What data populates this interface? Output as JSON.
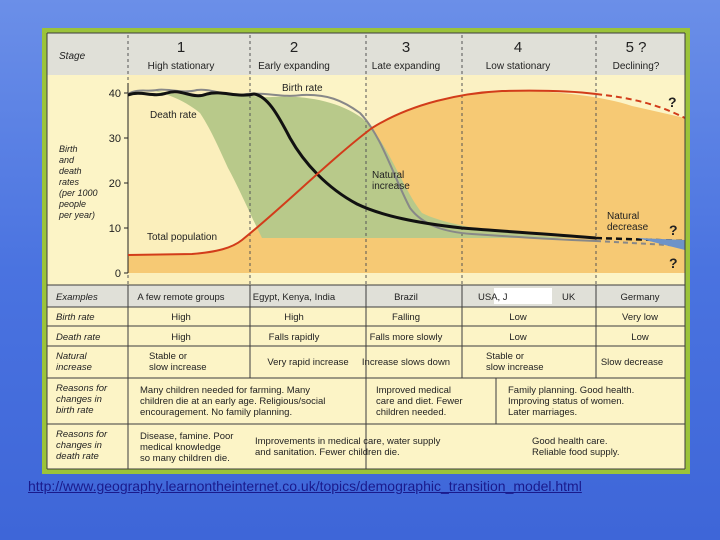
{
  "caption": {
    "line1": "http://www.geography.learnontheinternet.co.uk/topics/demographic_transition_model.html",
    "line2": ""
  },
  "stage_header": {
    "label": "Stage",
    "stages": [
      {
        "num": "1",
        "name": "High stationary"
      },
      {
        "num": "2",
        "name": "Early expanding"
      },
      {
        "num": "3",
        "name": "Late expanding"
      },
      {
        "num": "4",
        "name": "Low stationary"
      },
      {
        "num": "5 ?",
        "name": "Declining?"
      }
    ]
  },
  "axis": {
    "label_lines": [
      "Birth",
      "and",
      "death",
      "rates",
      "(per 1000",
      "people",
      "per year)"
    ],
    "ticks": [
      "40",
      "30",
      "20",
      "10",
      "0"
    ]
  },
  "graph_labels": {
    "birth_rate": "Birth rate",
    "death_rate": "Death rate",
    "natural_increase": [
      "Natural",
      "increase"
    ],
    "total_population": "Total population",
    "natural_decrease": [
      "Natural",
      "decrease"
    ],
    "q_top": "?",
    "q_mid": "?",
    "q_bottom": "?"
  },
  "table": {
    "rows": [
      {
        "label": [
          "Examples"
        ],
        "cells": [
          [
            "A few remote groups"
          ],
          [
            "Egypt, Kenya, India"
          ],
          [
            "Brazil"
          ],
          [
            "USA, J",
            "UK"
          ],
          [
            "Germany"
          ]
        ]
      },
      {
        "label": [
          "Birth rate"
        ],
        "cells": [
          [
            "High"
          ],
          [
            "High"
          ],
          [
            "Falling"
          ],
          [
            "Low"
          ],
          [
            "Very low"
          ]
        ]
      },
      {
        "label": [
          "Death rate"
        ],
        "cells": [
          [
            "High"
          ],
          [
            "Falls rapidly"
          ],
          [
            "Falls more slowly"
          ],
          [
            "Low"
          ],
          [
            "Low"
          ]
        ]
      },
      {
        "label": [
          "Natural",
          "increase"
        ],
        "cells": [
          [
            "Stable or",
            "slow increase"
          ],
          [
            "Very rapid increase"
          ],
          [
            "Increase slows down"
          ],
          [
            "Stable or",
            "slow increase"
          ],
          [
            "Slow decrease"
          ]
        ]
      }
    ],
    "reasons_birth": {
      "label": [
        "Reasons for",
        "changes in",
        "birth rate"
      ],
      "a": [
        "Many children needed for farming. Many",
        "children die at an early age. Religious/social",
        "encouragement. No family planning."
      ],
      "b": [
        "Improved medical",
        "care and diet. Fewer",
        "children needed."
      ],
      "c": [
        "Family planning. Good health.",
        "Improving status of women.",
        "Later marriages."
      ]
    },
    "reasons_death": {
      "label": [
        "Reasons for",
        "changes in",
        "death rate"
      ],
      "a": [
        "Disease, famine. Poor",
        "medical knowledge",
        "so many children die."
      ],
      "b": [
        "Improvements in medical care, water supply",
        "and sanitation. Fewer children die."
      ],
      "c": [
        "Good health care.",
        "Reliable food supply."
      ]
    }
  },
  "colors": {
    "background": "#4a73e0",
    "frame": "#9bc33a",
    "paper": "#fcf4c6",
    "header_row": "#e0e0d8",
    "population_fill": "#f6c974",
    "natural_increase_fill": "#b8c98a",
    "birth_line": "#8c8c8c",
    "death_line": "#111111",
    "population_line": "#d23c1a"
  }
}
